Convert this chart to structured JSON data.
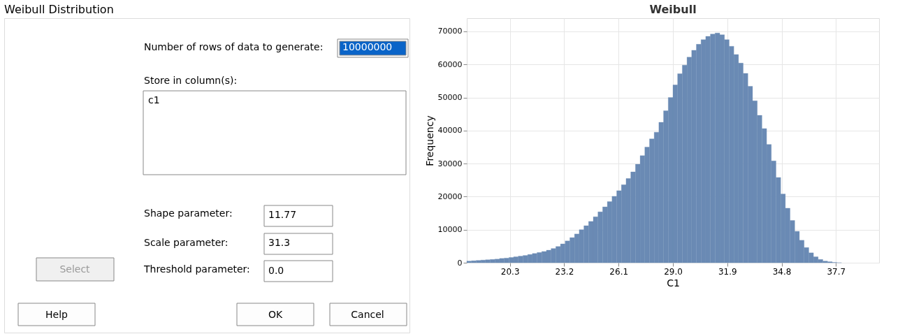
{
  "chart_data": [
    {
      "type": "other",
      "title": "Weibull Distribution",
      "annotations": [
        "Number of rows of data to generate:",
        "10000000",
        "Store in column(s):",
        "c1",
        "Shape parameter:",
        "11.77",
        "Scale parameter:",
        "31.3",
        "Threshold parameter:",
        "0.0",
        "Select",
        "Help",
        "OK",
        "Cancel"
      ]
    },
    {
      "type": "histogram",
      "title": "Weibull",
      "xlabel": "C1",
      "ylabel": "Frequency",
      "color": "#6a8ab4",
      "bins": [
        18.0,
        18.25,
        18.5,
        18.75,
        19.0,
        19.25,
        19.5,
        19.75,
        20.0,
        20.25,
        20.5,
        20.75,
        21.0,
        21.25,
        21.5,
        21.75,
        22.0,
        22.25,
        22.5,
        22.75,
        23.0,
        23.25,
        23.5,
        23.75,
        24.0,
        24.25,
        24.5,
        24.75,
        25.0,
        25.25,
        25.5,
        25.75,
        26.0,
        26.25,
        26.5,
        26.75,
        27.0,
        27.25,
        27.5,
        27.75,
        28.0,
        28.25,
        28.5,
        28.75,
        29.0,
        29.25,
        29.5,
        29.75,
        30.0,
        30.25,
        30.5,
        30.75,
        31.0,
        31.25,
        31.5,
        31.75,
        32.0,
        32.25,
        32.5,
        32.75,
        33.0,
        33.25,
        33.5,
        33.75,
        34.0,
        34.25,
        34.5,
        34.75,
        35.0,
        35.25,
        35.5,
        35.75,
        36.0,
        36.25,
        36.5,
        36.75,
        37.0,
        37.25,
        37.5,
        37.75,
        38.0
      ],
      "values": [
        500,
        600,
        700,
        800,
        900,
        1000,
        1100,
        1300,
        1400,
        1600,
        1800,
        2000,
        2200,
        2500,
        2800,
        3100,
        3400,
        3800,
        4300,
        4900,
        5700,
        6600,
        7600,
        8700,
        10000,
        11200,
        12500,
        13900,
        15400,
        16900,
        18500,
        20100,
        21800,
        23600,
        25500,
        27500,
        29800,
        32400,
        35000,
        37500,
        39500,
        42500,
        46000,
        50000,
        53800,
        57200,
        59800,
        62200,
        64300,
        66100,
        67500,
        68500,
        69200,
        69500,
        69000,
        67500,
        65500,
        63000,
        60400,
        57300,
        53400,
        49000,
        44600,
        40600,
        35800,
        30800,
        25800,
        20800,
        16500,
        12800,
        9500,
        6800,
        4600,
        3000,
        1800,
        1000,
        500,
        300,
        100,
        0
      ],
      "xlim": [
        18.0,
        40.0
      ],
      "xticks": [
        20.3,
        23.2,
        26.1,
        {
          "value": 29,
          "label": "29.0"
        },
        31.9,
        34.8,
        37.7
      ],
      "ylim": [
        0,
        74000
      ],
      "yticks": [
        0,
        10000,
        20000,
        30000,
        40000,
        50000,
        60000,
        70000
      ],
      "grid": true
    }
  ]
}
